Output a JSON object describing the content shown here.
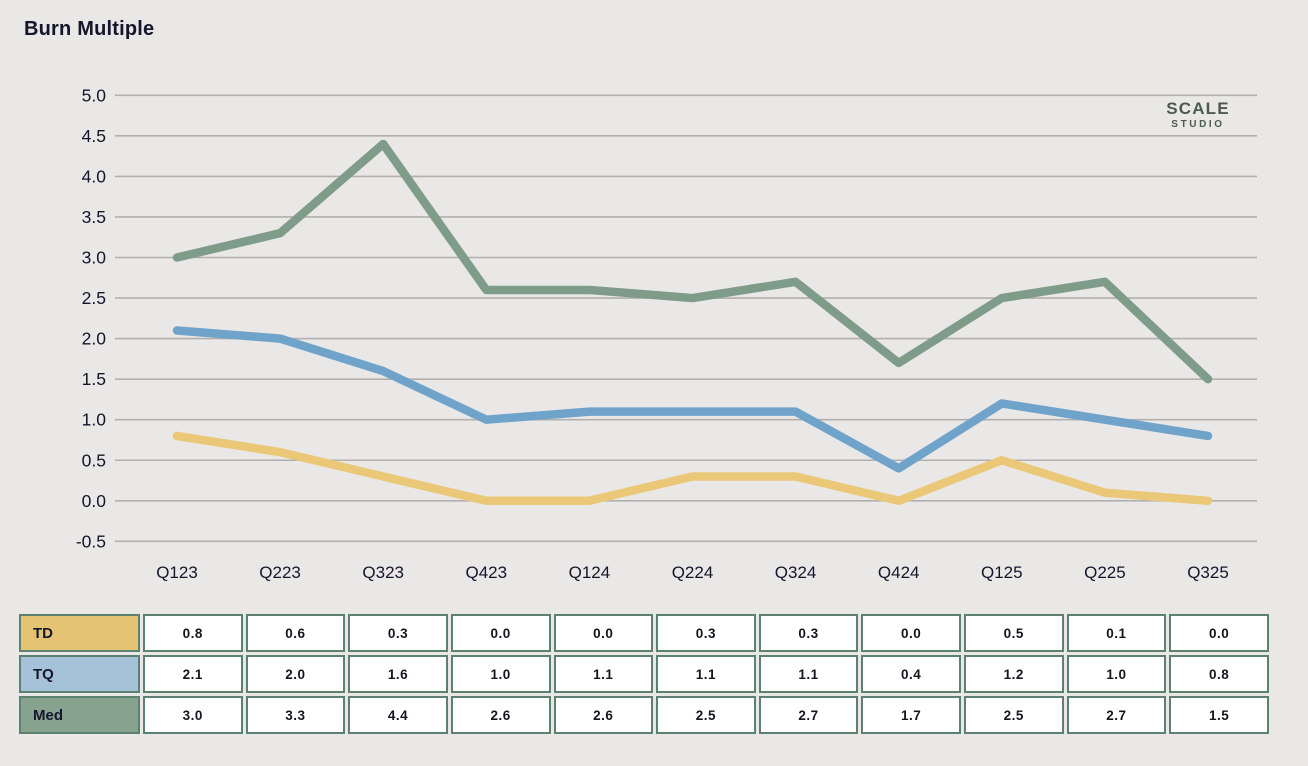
{
  "title": "Burn Multiple",
  "logo": {
    "line1": "SCALE",
    "line2": "STUDIO",
    "color": "#4c5a50"
  },
  "colors": {
    "background": "#e9e8e7",
    "gridline": "#b1b0ae",
    "axis_text": "#15152b",
    "table_border": "#5d8170",
    "table_cell_bg": "#ffffff"
  },
  "chart_data": {
    "type": "line",
    "title": "Burn Multiple",
    "categories": [
      "Q123",
      "Q223",
      "Q323",
      "Q423",
      "Q124",
      "Q224",
      "Q324",
      "Q424",
      "Q125",
      "Q225",
      "Q325"
    ],
    "series": [
      {
        "name": "TD",
        "color": "#ebc878",
        "header_fill": "#e4c472",
        "values": [
          0.8,
          0.6,
          0.3,
          0.0,
          0.0,
          0.3,
          0.3,
          0.0,
          0.5,
          0.1,
          0.0
        ]
      },
      {
        "name": "TQ",
        "color": "#70a3ca",
        "header_fill": "#a5c2d8",
        "values": [
          2.1,
          2.0,
          1.6,
          1.0,
          1.1,
          1.1,
          1.1,
          0.4,
          1.2,
          1.0,
          0.8
        ]
      },
      {
        "name": "Med",
        "color": "#7f9c8a",
        "header_fill": "#87a28e",
        "values": [
          3.0,
          3.3,
          4.4,
          2.6,
          2.6,
          2.5,
          2.7,
          1.7,
          2.5,
          2.7,
          1.5
        ]
      }
    ],
    "xlabel": "",
    "ylabel": "",
    "ylim": [
      -0.5,
      5.0
    ],
    "yticks": [
      "5.0",
      "4.5",
      "4.0",
      "3.5",
      "3.0",
      "2.5",
      "2.0",
      "1.5",
      "1.0",
      "0.5",
      "0.0",
      "-0.5"
    ],
    "grid": true,
    "legend_position": "table-below"
  },
  "table": {
    "row_order": [
      "TD",
      "TQ",
      "Med"
    ],
    "value_format": "one-decimal"
  }
}
